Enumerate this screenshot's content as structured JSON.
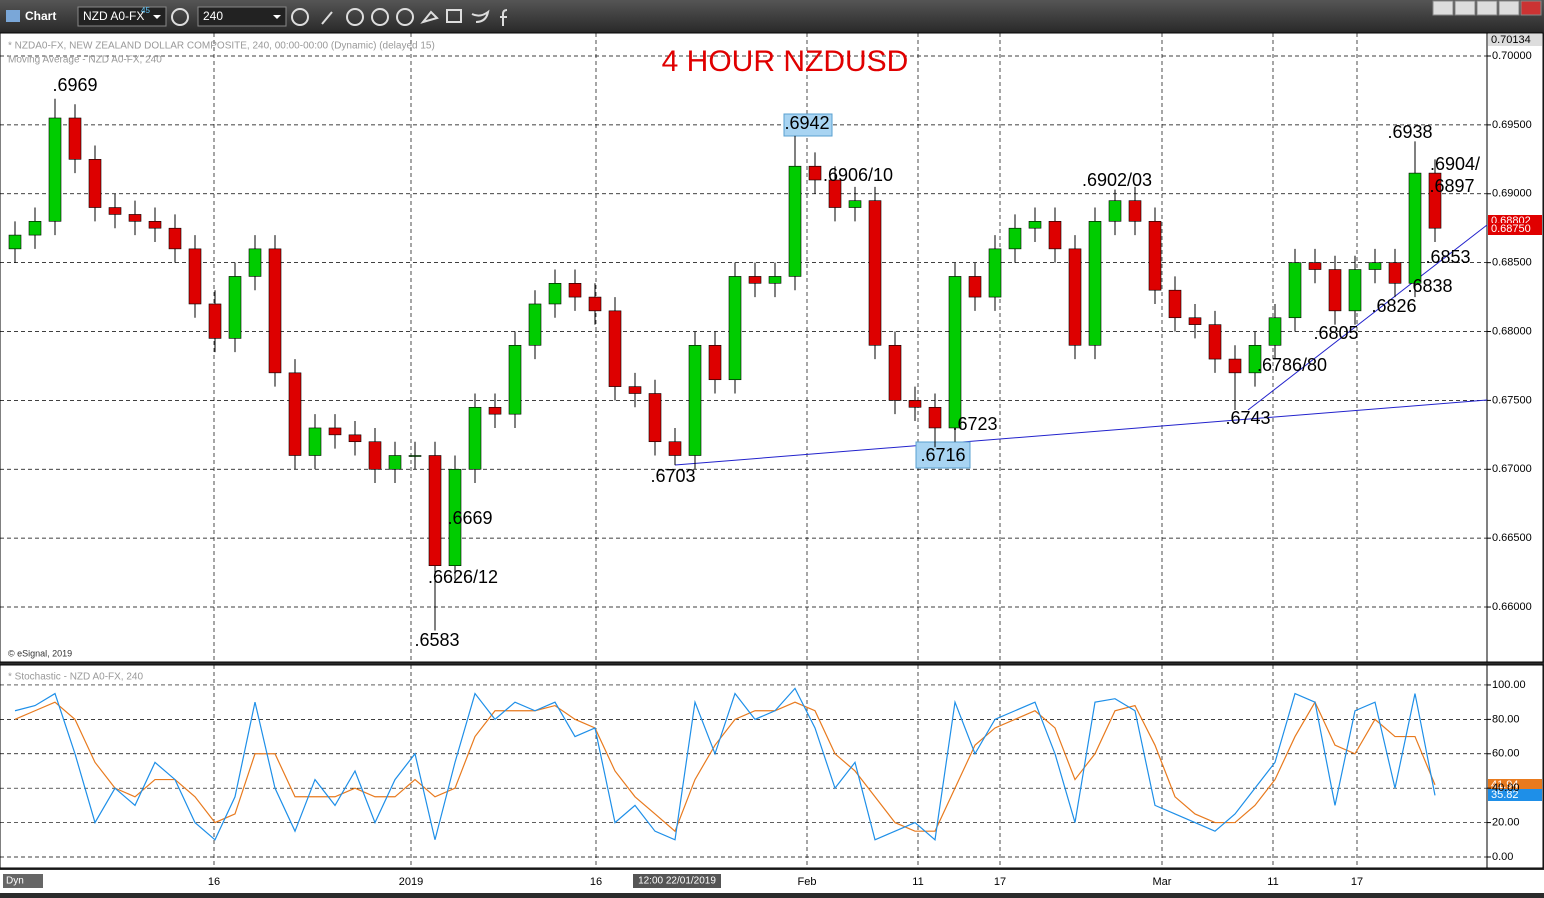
{
  "window": {
    "title": "Chart",
    "symbol": "NZD A0-FX",
    "symbol_sup": "45",
    "interval": "240",
    "header": "* NZDA0-FX, NEW ZEALAND DOLLAR COMPOSITE, 240, 00:00-00:00 (Dynamic) (delayed 15)",
    "ma_label": "Moving Average - NZD A0-FX, 240",
    "copyright": "© eSignal, 2019",
    "stoch_label": "* Stochastic - NZD A0-FX, 240",
    "dyn": "Dyn",
    "cursor_date": "12:00 22/01/2019",
    "price_badges": [
      "0.70134",
      "0.68802",
      "0.68750"
    ]
  },
  "chart_data": [
    {
      "type": "candlestick",
      "title": "4 HOUR NZDUSD",
      "up_color": "#00cc00",
      "down_color": "#dd0000",
      "grid": true,
      "categories": [
        null,
        null,
        null,
        null,
        null,
        null,
        null,
        null,
        null,
        null,
        null,
        null,
        null,
        null,
        null,
        null,
        null,
        null,
        null,
        null,
        null,
        null,
        null,
        null,
        null,
        null,
        null,
        null,
        null,
        null,
        null,
        null,
        null,
        null,
        null,
        null,
        null,
        null,
        null,
        null,
        null,
        null,
        null,
        null,
        null,
        null,
        null,
        null,
        null,
        null,
        null,
        null,
        null,
        null,
        null,
        null,
        null,
        null,
        null,
        null,
        null,
        null,
        null,
        null,
        null,
        null,
        null,
        null,
        null,
        null,
        null,
        null
      ],
      "open": [
        0.686,
        0.687,
        0.688,
        0.6955,
        0.6925,
        0.689,
        0.6885,
        0.688,
        0.6875,
        0.686,
        0.682,
        0.6795,
        0.684,
        0.686,
        0.677,
        0.671,
        0.673,
        0.6725,
        0.672,
        0.67,
        0.671,
        0.671,
        0.663,
        0.67,
        0.6745,
        0.674,
        0.679,
        0.682,
        0.6835,
        0.6825,
        0.6815,
        0.676,
        0.6755,
        0.672,
        0.671,
        0.679,
        0.6765,
        0.684,
        0.6835,
        0.684,
        0.692,
        0.691,
        0.689,
        0.6895,
        0.679,
        0.675,
        0.6745,
        0.673,
        0.684,
        0.6825,
        0.686,
        0.6875,
        0.688,
        0.686,
        0.679,
        0.688,
        0.6895,
        0.688,
        0.683,
        0.681,
        0.6805,
        0.678,
        0.677,
        0.679,
        0.681,
        0.685,
        0.6845,
        0.6815,
        0.6845,
        0.685,
        0.6835,
        0.6915
      ],
      "high": [
        0.688,
        0.689,
        0.6969,
        0.6965,
        0.6935,
        0.69,
        0.6895,
        0.689,
        0.6885,
        0.687,
        0.683,
        0.685,
        0.687,
        0.687,
        0.678,
        0.674,
        0.674,
        0.6735,
        0.673,
        0.672,
        0.672,
        0.672,
        0.671,
        0.6755,
        0.6755,
        0.68,
        0.683,
        0.6845,
        0.6845,
        0.6835,
        0.6825,
        0.677,
        0.6765,
        0.673,
        0.68,
        0.68,
        0.685,
        0.685,
        0.685,
        0.6942,
        0.693,
        0.692,
        0.6905,
        0.6905,
        0.68,
        0.676,
        0.6755,
        0.685,
        0.685,
        0.687,
        0.6885,
        0.689,
        0.689,
        0.687,
        0.689,
        0.6903,
        0.6905,
        0.689,
        0.684,
        0.682,
        0.6815,
        0.679,
        0.68,
        0.682,
        0.686,
        0.686,
        0.6855,
        0.6855,
        0.686,
        0.686,
        0.6938,
        0.6925
      ],
      "low": [
        0.685,
        0.686,
        0.687,
        0.6915,
        0.688,
        0.6875,
        0.687,
        0.6865,
        0.685,
        0.681,
        0.6785,
        0.6785,
        0.683,
        0.676,
        0.67,
        0.67,
        0.6715,
        0.671,
        0.669,
        0.669,
        0.67,
        0.6583,
        0.662,
        0.669,
        0.673,
        0.673,
        0.678,
        0.681,
        0.6815,
        0.6805,
        0.675,
        0.6745,
        0.671,
        0.6703,
        0.67,
        0.6755,
        0.6755,
        0.6825,
        0.6825,
        0.683,
        0.69,
        0.688,
        0.688,
        0.678,
        0.674,
        0.6735,
        0.6716,
        0.672,
        0.6815,
        0.6815,
        0.685,
        0.6865,
        0.685,
        0.678,
        0.678,
        0.687,
        0.687,
        0.682,
        0.68,
        0.6795,
        0.677,
        0.6743,
        0.676,
        0.678,
        0.68,
        0.6835,
        0.6805,
        0.6805,
        0.6835,
        0.6825,
        0.6825,
        0.6865
      ],
      "close": [
        0.687,
        0.688,
        0.6955,
        0.6925,
        0.689,
        0.6885,
        0.688,
        0.6875,
        0.686,
        0.682,
        0.6795,
        0.684,
        0.686,
        0.677,
        0.671,
        0.673,
        0.6725,
        0.672,
        0.67,
        0.671,
        0.671,
        0.663,
        0.67,
        0.6745,
        0.674,
        0.679,
        0.682,
        0.6835,
        0.6825,
        0.6815,
        0.676,
        0.6755,
        0.672,
        0.671,
        0.679,
        0.6765,
        0.684,
        0.6835,
        0.684,
        0.692,
        0.691,
        0.689,
        0.6895,
        0.679,
        0.675,
        0.6745,
        0.673,
        0.684,
        0.6825,
        0.686,
        0.6875,
        0.688,
        0.686,
        0.679,
        0.688,
        0.6895,
        0.688,
        0.683,
        0.681,
        0.6805,
        0.678,
        0.677,
        0.679,
        0.681,
        0.685,
        0.6845,
        0.6815,
        0.6845,
        0.685,
        0.6835,
        0.6915,
        0.6875
      ],
      "ylim": [
        0.65601,
        0.70167
      ],
      "yticks": [
        {
          "value": 0.7,
          "label": "0.70000"
        },
        {
          "value": 0.695,
          "label": "0.69500"
        },
        {
          "value": 0.69,
          "label": "0.69000"
        },
        {
          "value": 0.685,
          "label": "0.68500"
        },
        {
          "value": 0.68,
          "label": "0.68000"
        },
        {
          "value": 0.675,
          "label": "0.67500"
        },
        {
          "value": 0.67,
          "label": "0.67000"
        },
        {
          "value": 0.665,
          "label": "0.66500"
        },
        {
          "value": 0.66,
          "label": "0.66000"
        }
      ],
      "annotations": [
        ".6969",
        ".6942",
        ".6906/10",
        ".6902/03",
        ".6938",
        ".6904/",
        ".6897",
        ".6853",
        ".6838",
        ".6826",
        ".6805",
        ".6786/80",
        ".6743",
        ".6723",
        ".6716",
        ".6703",
        ".6669",
        ".6626/12",
        ".6583"
      ]
    },
    {
      "type": "line",
      "grid": true,
      "categories": [
        null,
        null,
        null,
        null,
        null,
        null,
        null,
        null,
        null,
        null,
        null,
        null,
        null,
        null,
        null,
        null,
        null,
        null,
        null,
        null,
        null,
        null,
        null,
        null,
        null,
        null,
        null,
        null,
        null,
        null,
        null,
        null,
        null,
        null,
        null,
        null,
        null,
        null,
        null,
        null,
        null,
        null,
        null,
        null,
        null,
        null,
        null,
        null,
        null,
        null,
        null,
        null,
        null,
        null,
        null,
        null,
        null,
        null,
        null,
        null,
        null,
        null,
        null,
        null,
        null,
        null,
        null,
        null,
        null,
        null,
        null,
        null
      ],
      "series": [
        {
          "color": "#e87a1e",
          "values": [
            80,
            85,
            90,
            80,
            55,
            40,
            35,
            45,
            45,
            35,
            20,
            25,
            60,
            60,
            35,
            35,
            35,
            40,
            35,
            35,
            45,
            35,
            40,
            70,
            85,
            85,
            85,
            88,
            80,
            75,
            50,
            35,
            25,
            15,
            45,
            65,
            80,
            85,
            85,
            90,
            85,
            60,
            50,
            35,
            20,
            15,
            15,
            40,
            65,
            75,
            80,
            85,
            75,
            45,
            60,
            85,
            88,
            65,
            35,
            25,
            20,
            20,
            30,
            45,
            70,
            90,
            65,
            60,
            80,
            70,
            70,
            41.94
          ]
        },
        {
          "color": "#1e8fe8",
          "values": [
            85,
            88,
            95,
            60,
            20,
            40,
            30,
            55,
            45,
            20,
            10,
            35,
            90,
            40,
            15,
            45,
            30,
            50,
            20,
            45,
            60,
            10,
            55,
            95,
            80,
            90,
            85,
            90,
            70,
            75,
            20,
            30,
            15,
            10,
            90,
            60,
            95,
            80,
            85,
            98,
            75,
            40,
            55,
            10,
            15,
            20,
            10,
            90,
            60,
            80,
            85,
            90,
            60,
            20,
            90,
            92,
            85,
            30,
            25,
            20,
            15,
            25,
            40,
            55,
            95,
            90,
            30,
            85,
            90,
            40,
            95,
            35.82
          ]
        }
      ],
      "ylim": [
        -6.4,
        111.6
      ],
      "yticks": [
        {
          "value": 100,
          "label": "100.00"
        },
        {
          "value": 80,
          "label": "80.00"
        },
        {
          "value": 60,
          "label": "60.00"
        },
        {
          "value": 40,
          "label": "40.00"
        },
        {
          "value": 20,
          "label": "20.00"
        },
        {
          "value": 0,
          "label": "0.00"
        }
      ],
      "xlim": [
        0,
        72
      ],
      "xticks": [
        {
          "value": 10.45,
          "label": "16"
        },
        {
          "value": 20.3,
          "label": "2019"
        },
        {
          "value": 29.55,
          "label": "16"
        },
        {
          "value": 40.1,
          "label": "Feb"
        },
        {
          "value": 45.65,
          "label": "11"
        },
        {
          "value": 49.75,
          "label": "17"
        },
        {
          "value": 57.85,
          "label": "Mar"
        },
        {
          "value": 63.4,
          "label": "11"
        },
        {
          "value": 67.6,
          "label": "17"
        }
      ]
    }
  ]
}
